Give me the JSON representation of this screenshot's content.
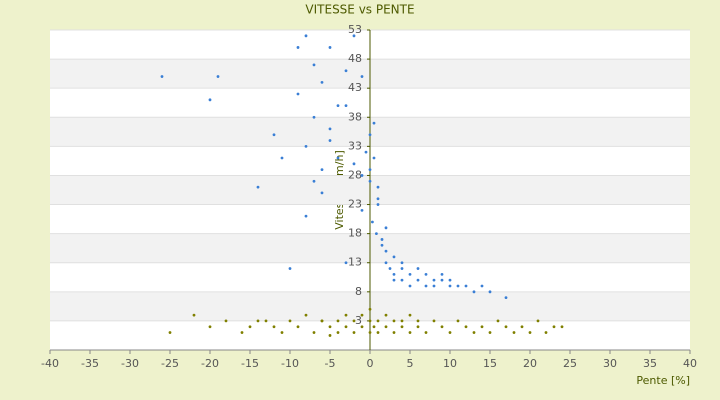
{
  "chart_data": {
    "type": "scatter",
    "title": "VITESSE vs PENTE",
    "xlabel": "Pente [%]",
    "ylabel": "Vitesse [km/h]",
    "xlim": [
      -40,
      40
    ],
    "xticks": [
      -40,
      -35,
      -30,
      -25,
      -20,
      -15,
      -10,
      -5,
      0,
      5,
      10,
      15,
      20,
      25,
      30,
      35,
      40
    ],
    "ylim": [
      -2,
      53
    ],
    "yticks": [
      3,
      8,
      13,
      18,
      23,
      28,
      33,
      38,
      43,
      48,
      53
    ],
    "grid": true,
    "series": [
      {
        "color": "#3a7fd5",
        "x": [
          -26,
          -19,
          -20,
          -14,
          -8,
          -10,
          -3,
          -12,
          -11,
          -9,
          -8,
          -7,
          -6,
          -5,
          -4,
          -8,
          -7,
          -6,
          -5,
          -3,
          -9,
          -6,
          -4,
          -2,
          -7,
          -5,
          -3,
          -1,
          -2,
          -1,
          0,
          0,
          0.5,
          1,
          1,
          -0.5,
          -1,
          0,
          0.3,
          0.8,
          1.5,
          2,
          2,
          2.5,
          3,
          3,
          4,
          4,
          5,
          5,
          6,
          6,
          7,
          7,
          8,
          8,
          9,
          9,
          10,
          10,
          11,
          12,
          13,
          14,
          15,
          17,
          2,
          3,
          4,
          1,
          1.5,
          0.5
        ],
        "values": [
          45,
          45,
          41,
          26,
          21,
          12,
          13,
          35,
          31,
          50,
          52,
          47,
          44,
          50,
          40,
          33,
          38,
          29,
          36,
          46,
          42,
          25,
          31,
          52,
          27,
          34,
          40,
          45,
          30,
          28,
          29,
          27,
          31,
          26,
          24,
          32,
          22,
          35,
          20,
          18,
          17,
          15,
          13,
          12,
          11,
          10,
          10,
          12,
          9,
          11,
          10,
          12,
          9,
          11,
          10,
          9,
          10,
          11,
          9,
          10,
          9,
          9,
          8,
          9,
          8,
          7,
          19,
          14,
          13,
          23,
          16,
          37
        ]
      },
      {
        "color": "#808000",
        "x": [
          -25,
          -22,
          -20,
          -18,
          -16,
          -15,
          -14,
          -12,
          -11,
          -10,
          -9,
          -8,
          -7,
          -6,
          -5,
          -5,
          -4,
          -4,
          -3,
          -3,
          -2,
          -2,
          -1,
          -1,
          0,
          0,
          0,
          0.5,
          1,
          1,
          2,
          2,
          3,
          3,
          4,
          4,
          5,
          5,
          6,
          7,
          8,
          9,
          10,
          11,
          12,
          13,
          14,
          15,
          16,
          17,
          18,
          19,
          20,
          21,
          22,
          23,
          24,
          -13,
          -6,
          6
        ],
        "values": [
          1,
          4,
          2,
          3,
          1,
          2,
          3,
          2,
          1,
          3,
          2,
          4,
          1,
          3,
          2,
          0.5,
          3,
          1,
          4,
          2,
          1,
          3,
          2,
          4,
          1,
          3,
          5,
          2,
          3,
          1,
          2,
          4,
          1,
          3,
          2,
          3,
          1,
          4,
          2,
          1,
          3,
          2,
          1,
          3,
          2,
          1,
          2,
          1,
          3,
          2,
          1,
          2,
          1,
          3,
          1,
          2,
          2,
          3,
          3,
          3
        ]
      }
    ]
  }
}
